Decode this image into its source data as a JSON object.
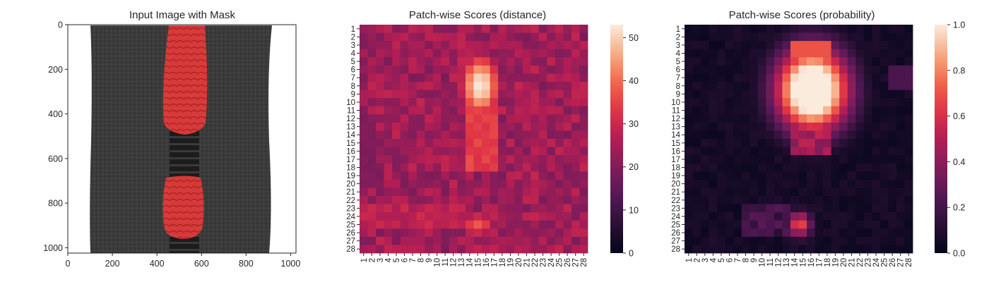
{
  "colors": {
    "mask_red": "#e03a3a",
    "fabric_dark": "#3a3a3a",
    "teeth_dark": "#1e1e1e",
    "axis": "#262626"
  },
  "chart_data": [
    {
      "type": "image",
      "title": "Input Image with Mask",
      "xlabel": "",
      "ylabel": "",
      "xlim": [
        0,
        1024
      ],
      "ylim": [
        1024,
        0
      ],
      "xticks": [
        0,
        200,
        400,
        600,
        800,
        1000
      ],
      "yticks": [
        0,
        200,
        400,
        600,
        800,
        1000
      ],
      "content": [
        "zipper",
        "red mask regions"
      ]
    },
    {
      "type": "heatmap",
      "title": "Patch-wise Scores (distance)",
      "rows": 28,
      "cols": 28,
      "xticklabels": [
        "1",
        "2",
        "3",
        "4",
        "5",
        "6",
        "7",
        "8",
        "9",
        "10",
        "11",
        "12",
        "13",
        "14",
        "15",
        "16",
        "17",
        "18",
        "19",
        "20",
        "21",
        "22",
        "23",
        "24",
        "25",
        "26",
        "27",
        "28"
      ],
      "yticklabels": [
        "1",
        "2",
        "3",
        "4",
        "5",
        "6",
        "7",
        "8",
        "9",
        "10",
        "11",
        "12",
        "13",
        "14",
        "15",
        "16",
        "17",
        "18",
        "19",
        "20",
        "21",
        "22",
        "23",
        "24",
        "25",
        "26",
        "27",
        "28"
      ],
      "colormap": "rocket",
      "colorbar": {
        "min": 0,
        "max": 53,
        "ticks": [
          0,
          10,
          20,
          30,
          40,
          50
        ]
      },
      "hotspots": [
        {
          "row": 8,
          "col": 15,
          "peak": 53
        },
        {
          "row": 25,
          "col": 15,
          "peak": 38
        }
      ],
      "background_level": 25
    },
    {
      "type": "heatmap",
      "title": "Patch-wise Scores (probability)",
      "rows": 28,
      "cols": 28,
      "xticklabels": [
        "1",
        "2",
        "3",
        "4",
        "5",
        "6",
        "7",
        "8",
        "9",
        "10",
        "11",
        "12",
        "13",
        "14",
        "15",
        "16",
        "17",
        "18",
        "19",
        "20",
        "21",
        "22",
        "23",
        "24",
        "25",
        "26",
        "27",
        "28"
      ],
      "yticklabels": [
        "1",
        "2",
        "3",
        "4",
        "5",
        "6",
        "7",
        "8",
        "9",
        "10",
        "11",
        "12",
        "13",
        "14",
        "15",
        "16",
        "17",
        "18",
        "19",
        "20",
        "21",
        "22",
        "23",
        "24",
        "25",
        "26",
        "27",
        "28"
      ],
      "colormap": "rocket",
      "colorbar": {
        "min": 0.0,
        "max": 1.0,
        "ticks": [
          0.0,
          0.2,
          0.4,
          0.6,
          0.8,
          1.0
        ],
        "ticklabels": [
          "0.0",
          "0.2",
          "0.4",
          "0.6",
          "0.8",
          "1.0"
        ]
      },
      "hotspots": [
        {
          "row": 8,
          "col": 16,
          "peak": 1.0
        },
        {
          "row": 25,
          "col": 15,
          "peak": 0.7
        }
      ],
      "background_level": 0.05
    }
  ]
}
